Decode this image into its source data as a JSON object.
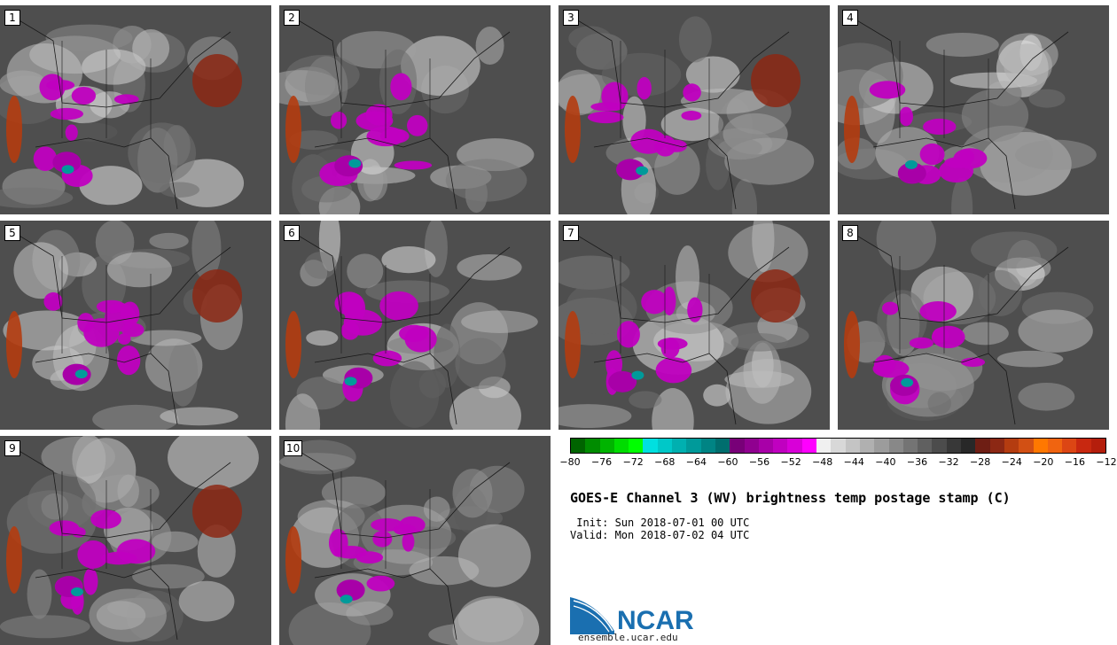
{
  "panels": [
    {
      "label": "1"
    },
    {
      "label": "2"
    },
    {
      "label": "3"
    },
    {
      "label": "4"
    },
    {
      "label": "5"
    },
    {
      "label": "6"
    },
    {
      "label": "7"
    },
    {
      "label": "8"
    },
    {
      "label": "9"
    },
    {
      "label": "10"
    }
  ],
  "colorbar": {
    "colors": [
      "#006400",
      "#008c00",
      "#00b400",
      "#00dc00",
      "#00ff00",
      "#00e0e0",
      "#00c8c8",
      "#00b0b0",
      "#009a9a",
      "#008484",
      "#006e6e",
      "#780078",
      "#900090",
      "#a800a8",
      "#c000c0",
      "#d800d8",
      "#ff00ff",
      "#f0f0f0",
      "#d8d8d8",
      "#c4c4c4",
      "#b0b0b0",
      "#9c9c9c",
      "#888888",
      "#747474",
      "#606060",
      "#4c4c4c",
      "#383838",
      "#282828",
      "#6e1e14",
      "#8c2814",
      "#b43c10",
      "#d25014",
      "#ff7800",
      "#f06410",
      "#dc4614",
      "#c82810",
      "#b41e0c"
    ],
    "ticks": [
      "−80",
      "−76",
      "−72",
      "−68",
      "−64",
      "−60",
      "−56",
      "−52",
      "−48",
      "−44",
      "−40",
      "−36",
      "−32",
      "−28",
      "−24",
      "−20",
      "−16",
      "−12"
    ]
  },
  "title": "GOES-E Channel 3 (WV) brightness temp postage stamp (C)",
  "init": " Init: Sun 2018-07-01 00 UTC",
  "valid": "Valid: Mon 2018-07-02 04 UTC",
  "logo": {
    "text": "NCAR",
    "url": "ensemble.ucar.edu",
    "color": "#1a6fb0"
  }
}
